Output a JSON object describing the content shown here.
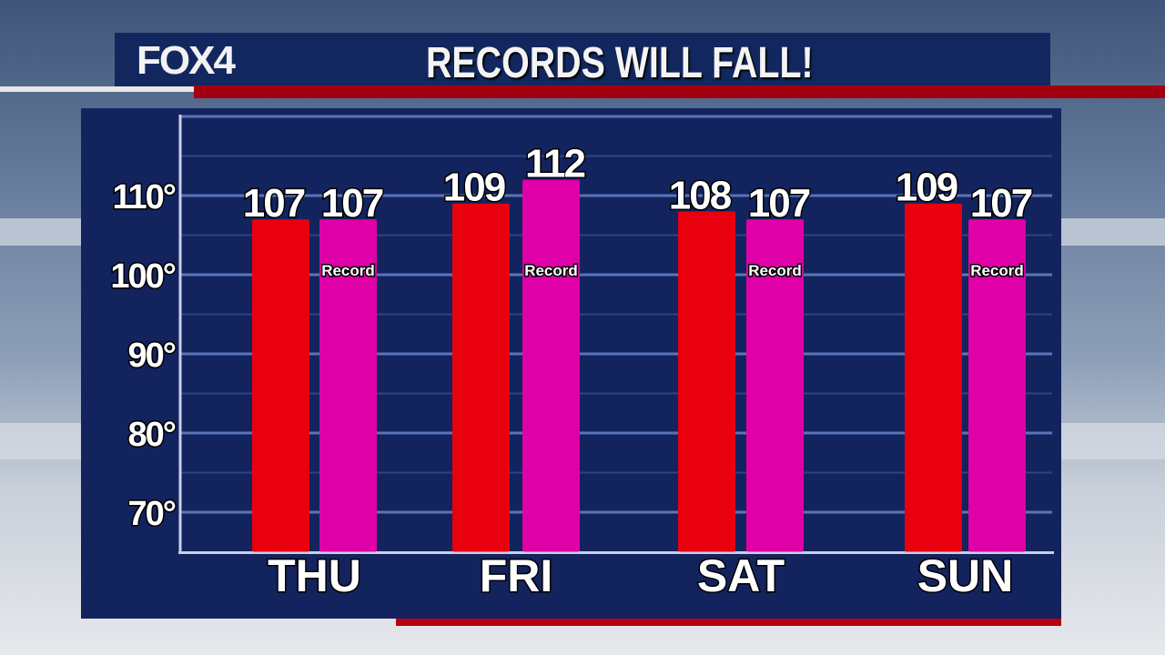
{
  "header": {
    "logo": "FOX4",
    "title": "RECORDS WILL FALL!"
  },
  "colors": {
    "forecast": "#e8000f",
    "record": "#e000a8",
    "panel": "#13235e"
  },
  "chart_data": {
    "type": "bar",
    "title": "RECORDS WILL FALL!",
    "categories": [
      "THU",
      "FRI",
      "SAT",
      "SUN"
    ],
    "series": [
      {
        "values": [
          107,
          109,
          108,
          109
        ],
        "color": "#e8000f"
      },
      {
        "name": "Record",
        "values": [
          107,
          112,
          107,
          107
        ],
        "color": "#e000a8"
      }
    ],
    "bar_label": "Record",
    "yticks": [
      "70°",
      "80°",
      "90°",
      "100°",
      "110°"
    ],
    "ytick_values": [
      70,
      80,
      90,
      100,
      110
    ],
    "ylim": [
      65,
      120
    ],
    "grid": true
  }
}
